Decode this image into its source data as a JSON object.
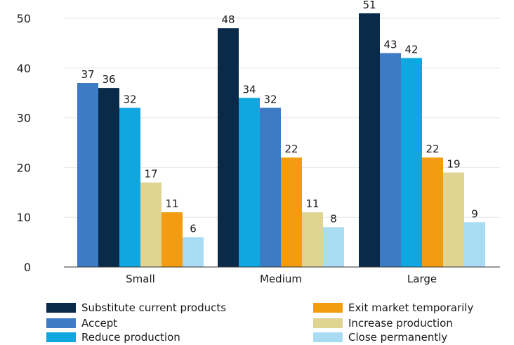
{
  "chart_data": {
    "type": "bar",
    "categories": [
      "Small",
      "Medium",
      "Large"
    ],
    "ylim": [
      0,
      50
    ],
    "yticks": [
      0,
      10,
      20,
      30,
      40,
      50
    ],
    "grid": true,
    "legend_position": "bottom",
    "bar_order": [
      [
        "accept",
        "substitute",
        "reduce",
        "increase",
        "exit",
        "close"
      ],
      [
        "substitute",
        "reduce",
        "accept",
        "exit",
        "increase",
        "close"
      ],
      [
        "substitute",
        "accept",
        "reduce",
        "exit",
        "increase",
        "close"
      ]
    ],
    "series": [
      {
        "key": "substitute",
        "name": "Substitute current products",
        "color": "#0a2a4a",
        "values": [
          36,
          48,
          51
        ],
        "labels": [
          "36",
          "48",
          "51"
        ]
      },
      {
        "key": "accept",
        "name": "Accept",
        "color": "#3d7bc4",
        "values": [
          37,
          32,
          43
        ],
        "labels": [
          "37",
          "32",
          "43"
        ]
      },
      {
        "key": "reduce",
        "name": "Reduce production",
        "color": "#10a6e0",
        "values": [
          32,
          34,
          42
        ],
        "labels": [
          "32",
          "34",
          "42"
        ]
      },
      {
        "key": "exit",
        "name": "Exit market temporarily",
        "color": "#f39c12",
        "values": [
          11,
          22,
          22
        ],
        "labels": [
          "11",
          "22",
          "22"
        ]
      },
      {
        "key": "increase",
        "name": "Increase production",
        "color": "#e0d493",
        "values": [
          17,
          11,
          19
        ],
        "labels": [
          "17",
          "11",
          "19"
        ]
      },
      {
        "key": "close",
        "name": "Close permanently",
        "color": "#a9dcf2",
        "values": [
          6,
          8,
          9
        ],
        "labels": [
          "6",
          "8",
          "9"
        ]
      }
    ],
    "legend_order": [
      "substitute",
      "accept",
      "reduce",
      "exit",
      "increase",
      "close"
    ]
  }
}
